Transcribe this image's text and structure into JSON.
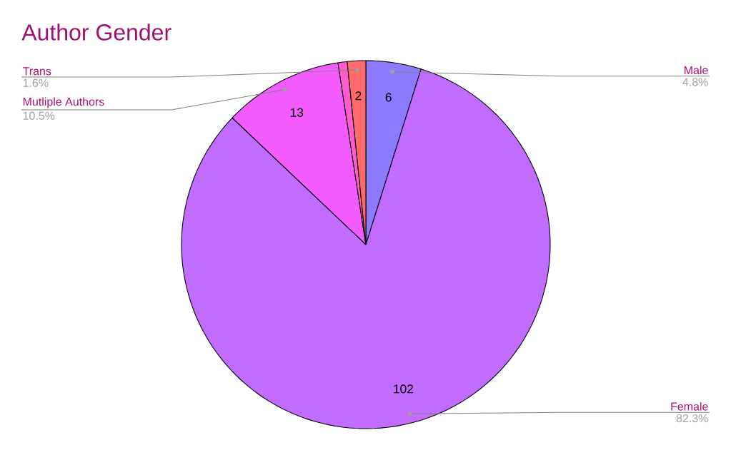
{
  "chart_data": {
    "type": "pie",
    "title": "Author Gender",
    "categories": [
      "Male",
      "Female",
      "Mutliple Authors",
      null,
      "Trans"
    ],
    "values": [
      6,
      102,
      13,
      1,
      2
    ],
    "colors": [
      "#8c7bff",
      "#c16bff",
      "#f25cff",
      "#ff5ccd",
      "#ff6b6b"
    ],
    "value_labels": [
      "6",
      "102",
      "13",
      null,
      "2"
    ],
    "annotations": [
      "4.8%",
      "82.3%",
      "10.5%",
      "1.6%"
    ]
  }
}
